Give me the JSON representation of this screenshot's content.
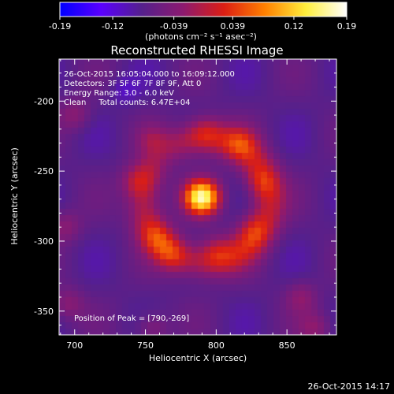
{
  "chart_data": {
    "type": "heatmap",
    "title": "Reconstructed RHESSI Image",
    "xlabel": "Heliocentric X (arcsec)",
    "ylabel": "Heliocentric Y (arcsec)",
    "xlim": [
      689,
      885
    ],
    "ylim": [
      -367,
      -170
    ],
    "xticks": [
      700,
      750,
      800,
      850
    ],
    "yticks": [
      -200,
      -250,
      -300,
      -350
    ],
    "colorbar": {
      "range": [
        -0.19,
        0.19
      ],
      "ticks": [
        "-0.19",
        "-0.12",
        "-0.039",
        "0.039",
        "0.12",
        "0.19"
      ],
      "units": "(photons cm⁻² s⁻¹ asec⁻²)",
      "colormap": [
        "#0000ff",
        "#5a00ff",
        "#55208c",
        "#8c1a70",
        "#dc1e14",
        "#ff8000",
        "#ffee3c",
        "#ffffff"
      ]
    },
    "annotations": [
      "26-Oct-2015 16:05:04.000 to 16:09:12.000",
      "Detectors: 3F 5F 6F 7F 8F 9F, Att 0",
      "Energy Range: 3.0 - 6.0 keV",
      "Clean     Total counts: 6.47E+04"
    ],
    "peak_label": "Position of Peak = [790,-269]",
    "peak": {
      "x": 790,
      "y": -269
    },
    "arc_center": {
      "x": 793,
      "y": -271
    },
    "arc_radius_arcsec": 44,
    "hot_blobs": [
      {
        "x": 743,
        "y": -257
      },
      {
        "x": 792,
        "y": -222
      },
      {
        "x": 818,
        "y": -230
      },
      {
        "x": 832,
        "y": -258
      },
      {
        "x": 826,
        "y": -293
      },
      {
        "x": 800,
        "y": -307
      },
      {
        "x": 768,
        "y": -310
      },
      {
        "x": 758,
        "y": -297
      },
      {
        "x": 755,
        "y": -228
      },
      {
        "x": 860,
        "y": -340
      },
      {
        "x": 870,
        "y": -362
      },
      {
        "x": 755,
        "y": -362
      },
      {
        "x": 695,
        "y": -345
      },
      {
        "x": 693,
        "y": -290
      },
      {
        "x": 700,
        "y": -210
      }
    ]
  },
  "footer": {
    "timestamp": "26-Oct-2015 14:17"
  }
}
